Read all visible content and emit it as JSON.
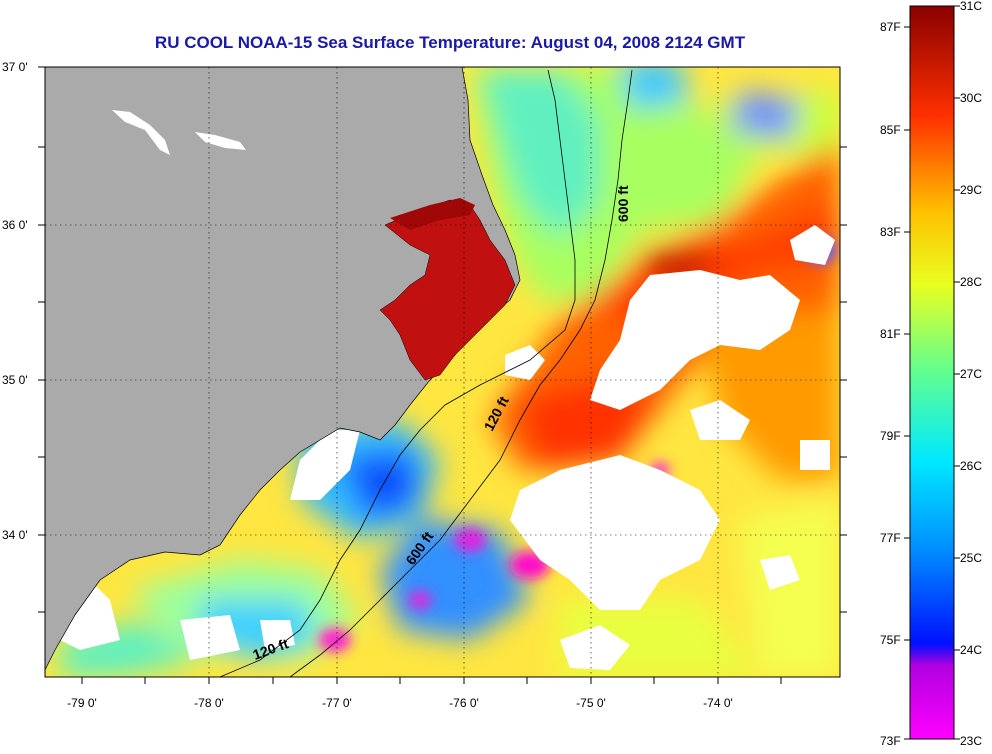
{
  "title": "RU COOL  NOAA-15  Sea Surface Temperature:  August 04, 2008 2124 GMT",
  "axes": {
    "lat_labels": [
      "37 0'",
      "36 0'",
      "35 0'",
      "34 0'"
    ],
    "lon_labels": [
      "-79 0'",
      "-78 0'",
      "-77 0'",
      "-76 0'",
      "-75 0'",
      "-74 0'"
    ]
  },
  "bathymetry_labels": {
    "north_600": "600 ft",
    "mid_120": "120 ft",
    "south_600": "600 ft",
    "south_120": "120 ft"
  },
  "colorbar": {
    "fahrenheit": [
      "87F",
      "85F",
      "83F",
      "81F",
      "79F",
      "77F",
      "75F",
      "73F"
    ],
    "celsius": [
      "31C",
      "30C",
      "29C",
      "28C",
      "27C",
      "26C",
      "25C",
      "24C",
      "23C"
    ]
  },
  "colors": {
    "land": "#aaaaaa",
    "cloud": "#ffffff",
    "title": "#1a1aa8",
    "frame": "#000000"
  }
}
